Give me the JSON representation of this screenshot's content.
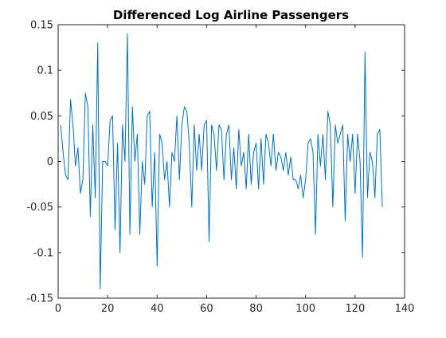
{
  "colors": {
    "figure_background": "#ffffff",
    "axes_color": "#262626",
    "line_color": "#0072bd"
  },
  "chart_data": {
    "type": "line",
    "title": "Differenced Log Airline Passengers",
    "xlabel": "",
    "ylabel": "",
    "xlim": [
      0,
      140
    ],
    "ylim": [
      -0.15,
      0.15
    ],
    "xticks": [
      0,
      20,
      40,
      60,
      80,
      100,
      120,
      140
    ],
    "yticks": [
      -0.15,
      -0.1,
      -0.05,
      0,
      0.05,
      0.1,
      0.15
    ],
    "xtick_labels": [
      "0",
      "20",
      "40",
      "60",
      "80",
      "100",
      "120",
      "140"
    ],
    "ytick_labels": [
      "-0.15",
      "-0.1",
      "-0.05",
      "0",
      "0.05",
      "0.1",
      "0.15"
    ],
    "grid": false,
    "box": true,
    "series": [
      {
        "x": [
          1,
          2,
          3,
          4,
          5,
          6,
          7,
          8,
          9,
          10,
          11,
          12,
          13,
          14,
          15,
          16,
          17,
          18,
          19,
          20,
          21,
          22,
          23,
          24,
          25,
          26,
          27,
          28,
          29,
          30,
          31,
          32,
          33,
          34,
          35,
          36,
          37,
          38,
          39,
          40,
          41,
          42,
          43,
          44,
          45,
          46,
          47,
          48,
          49,
          50,
          51,
          52,
          53,
          54,
          55,
          56,
          57,
          58,
          59,
          60,
          61,
          62,
          63,
          64,
          65,
          66,
          67,
          68,
          69,
          70,
          71,
          72,
          73,
          74,
          75,
          76,
          77,
          78,
          79,
          80,
          81,
          82,
          83,
          84,
          85,
          86,
          87,
          88,
          89,
          90,
          91,
          92,
          93,
          94,
          95,
          96,
          97,
          98,
          99,
          100,
          101,
          102,
          103,
          104,
          105,
          106,
          107,
          108,
          109,
          110,
          111,
          112,
          113,
          114,
          115,
          116,
          117,
          118,
          119,
          120,
          121,
          122,
          123,
          124,
          125,
          126,
          127,
          128,
          129,
          130,
          131
        ],
        "y": [
          0.04,
          0.01,
          -0.015,
          -0.02,
          0.068,
          0.04,
          -0.005,
          0.015,
          -0.035,
          -0.02,
          0.075,
          0.06,
          -0.06,
          0.04,
          -0.04,
          0.13,
          -0.14,
          0.0,
          0.0,
          -0.005,
          0.045,
          0.05,
          -0.075,
          0.02,
          -0.1,
          0.04,
          0.0,
          0.14,
          -0.08,
          0.06,
          0.0,
          0.03,
          -0.08,
          0.0,
          -0.025,
          0.05,
          0.055,
          -0.05,
          0.01,
          -0.115,
          0.03,
          0.02,
          -0.02,
          0.0,
          -0.05,
          0.01,
          0.0,
          0.05,
          -0.02,
          0.04,
          0.06,
          0.055,
          0.02,
          -0.05,
          0.04,
          -0.01,
          0.03,
          -0.01,
          0.04,
          0.045,
          -0.088,
          0.04,
          0.03,
          -0.01,
          0.04,
          0.035,
          -0.02,
          0.03,
          0.04,
          -0.02,
          0.015,
          -0.03,
          0.035,
          -0.005,
          0.01,
          -0.03,
          0.03,
          -0.025,
          0.01,
          0.02,
          -0.03,
          0.025,
          -0.025,
          0.03,
          0.02,
          -0.005,
          0.03,
          -0.01,
          0.01,
          0.005,
          -0.01,
          0.01,
          -0.015,
          0.005,
          -0.02,
          -0.02,
          -0.03,
          -0.015,
          -0.04,
          -0.02,
          0.02,
          0.025,
          0.01,
          -0.08,
          0.03,
          -0.005,
          0.03,
          -0.02,
          0.055,
          0.04,
          -0.05,
          0.04,
          0.02,
          0.03,
          0.04,
          -0.065,
          0.03,
          0.0,
          0.03,
          -0.035,
          0.03,
          0.0,
          -0.105,
          0.12,
          -0.04,
          0.01,
          0.0,
          -0.04,
          0.03,
          0.035,
          -0.05
        ]
      }
    ]
  }
}
